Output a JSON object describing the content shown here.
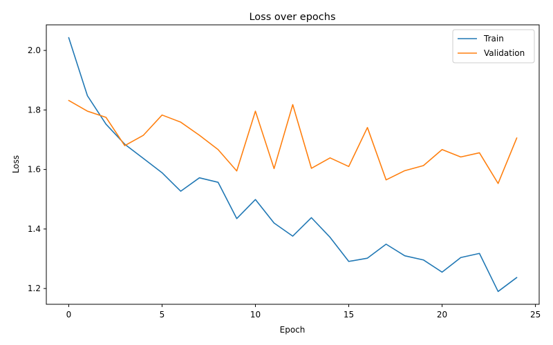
{
  "chart_data": {
    "type": "line",
    "title": "Loss over epochs",
    "xlabel": "Epoch",
    "ylabel": "Loss",
    "xlim": [
      -1.2,
      25.2
    ],
    "ylim": [
      1.147,
      2.086
    ],
    "xticks": [
      0,
      5,
      10,
      15,
      20,
      25
    ],
    "yticks": [
      1.2,
      1.4,
      1.6,
      1.8,
      2.0
    ],
    "ytick_labels": [
      "1.2",
      "1.4",
      "1.6",
      "1.8",
      "2.0"
    ],
    "grid": false,
    "legend_position": "top-right",
    "x": [
      0,
      1,
      2,
      3,
      4,
      5,
      6,
      7,
      8,
      9,
      10,
      11,
      12,
      13,
      14,
      15,
      16,
      17,
      18,
      19,
      20,
      21,
      22,
      23,
      24
    ],
    "series": [
      {
        "name": "Train",
        "color": "#1f77b4",
        "values": [
          2.043,
          1.848,
          1.752,
          1.685,
          1.637,
          1.589,
          1.527,
          1.572,
          1.557,
          1.435,
          1.499,
          1.42,
          1.376,
          1.438,
          1.372,
          1.291,
          1.302,
          1.349,
          1.31,
          1.296,
          1.255,
          1.304,
          1.318,
          1.19,
          1.237
        ]
      },
      {
        "name": "Validation",
        "color": "#ff7f0e",
        "values": [
          1.832,
          1.796,
          1.775,
          1.68,
          1.715,
          1.783,
          1.759,
          1.715,
          1.667,
          1.595,
          1.796,
          1.603,
          1.818,
          1.604,
          1.639,
          1.61,
          1.741,
          1.565,
          1.596,
          1.613,
          1.667,
          1.642,
          1.656,
          1.553,
          1.706
        ]
      }
    ]
  }
}
